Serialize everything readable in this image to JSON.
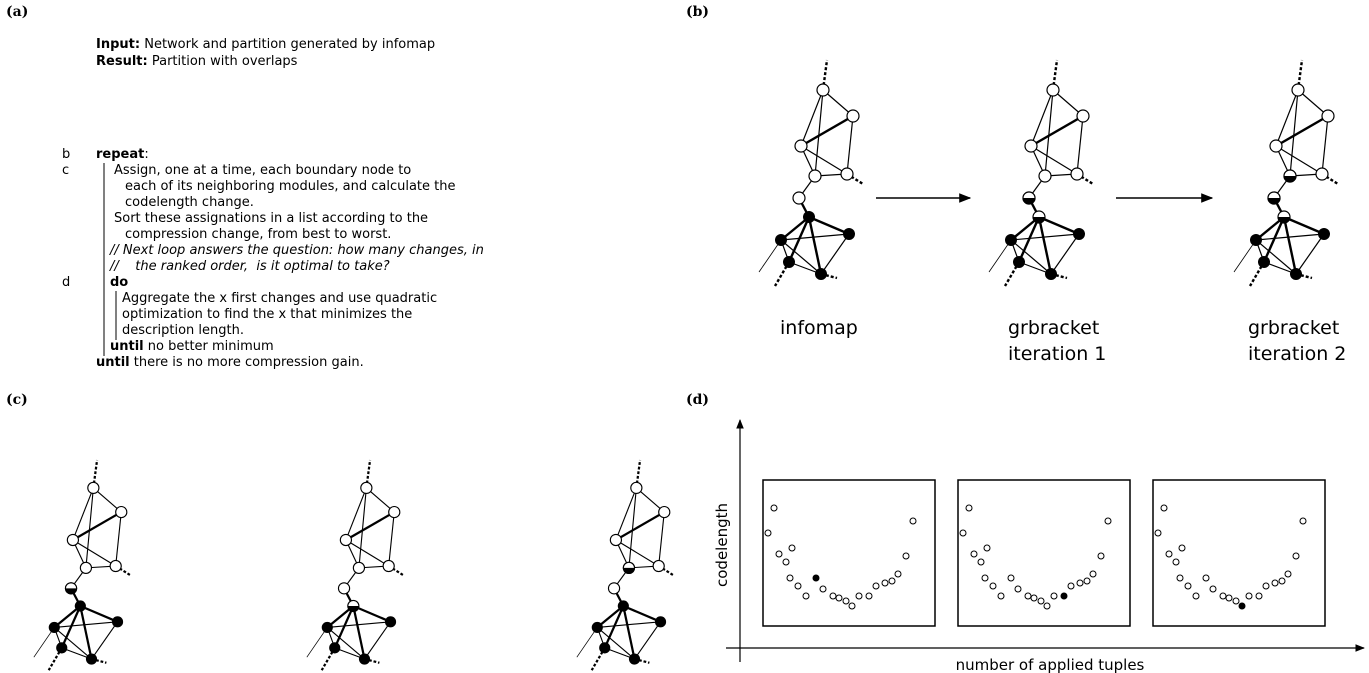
{
  "panels": {
    "a": "(a)",
    "b": "(b)",
    "c": "(c)",
    "d": "(d)"
  },
  "algorithm": {
    "input": {
      "label": "Input:",
      "text": "Network and partition generated by infomap"
    },
    "result": {
      "label": "Result:",
      "text": "Partition with overlaps"
    },
    "markers": [
      "b",
      "c",
      "d"
    ],
    "lines": [
      {
        "keyword": "repeat",
        "text": ":"
      },
      {
        "text": "Assign, one at a time, each boundary node to"
      },
      {
        "text": "each of its neighboring modules, and calculate the"
      },
      {
        "text": "codelength change."
      },
      {
        "text": "Sort these assignations in a list according to the"
      },
      {
        "text": "compression change, from best to worst."
      },
      {
        "text": "// Next loop answers the question: how many changes, in"
      },
      {
        "text": "//    the ranked order,  is it optimal to take?"
      },
      {
        "keyword": "do"
      },
      {
        "text": "Aggregate the x first changes and use quadratic"
      },
      {
        "text": "optimization to find the x that minimizes the"
      },
      {
        "text": "description length."
      },
      {
        "keyword": "until",
        "text": " no better minimum"
      },
      {
        "keyword": "until",
        "text": " there is no more compression gain."
      }
    ]
  },
  "captions": [
    [
      "infomap"
    ],
    [
      "grbracket",
      "iteration 1"
    ],
    [
      "grbracket",
      "iteration 2"
    ]
  ],
  "axes": {
    "y_label": "codelength",
    "x_label": "number of applied tuples"
  }
}
